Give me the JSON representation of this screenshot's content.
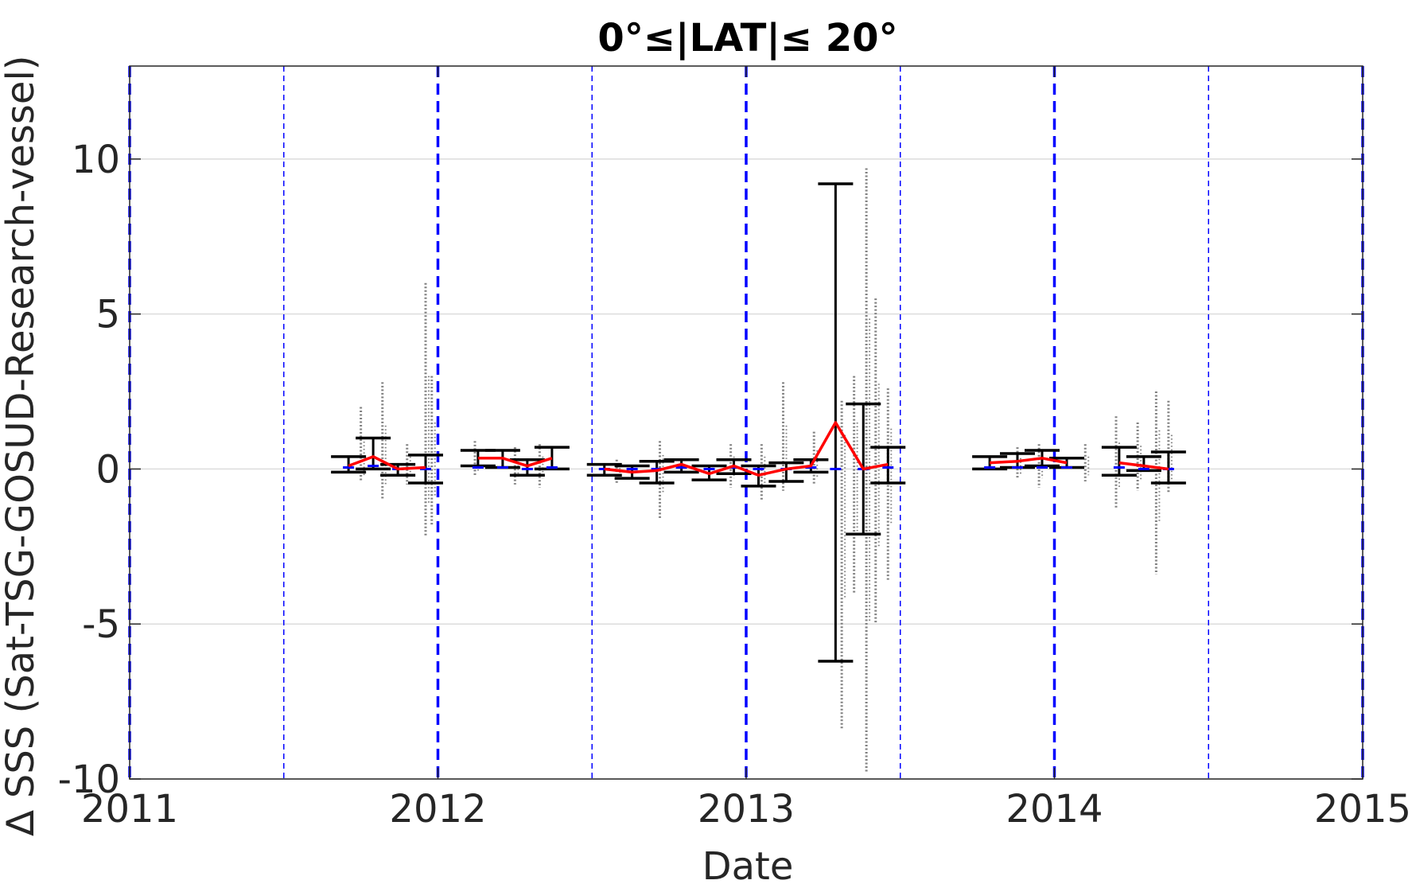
{
  "chart_data": {
    "type": "scatter",
    "title": "0°≤|LAT|≤ 20°",
    "xlabel": "Date",
    "ylabel": "∆ SSS (Sat-TSG-GOSUD-Research-vessel)",
    "xlim": [
      2011,
      2015
    ],
    "ylim": [
      -10,
      13
    ],
    "x_ticks": [
      2011,
      2012,
      2013,
      2014,
      2015
    ],
    "x_tick_labels": [
      "2011",
      "2012",
      "2013",
      "2014",
      "2015"
    ],
    "y_ticks": [
      -10,
      -5,
      0,
      5,
      10
    ],
    "y_tick_labels": [
      "-10",
      "-5",
      "0",
      "5",
      "10"
    ],
    "grid": "horizontal",
    "colors": {
      "scatter": "#808080",
      "mean_line": "#ff0000",
      "errorbar": "#000000",
      "year_markers": "#0000ff",
      "median_marks": "#0000ff",
      "grid": "#dcdcdc",
      "axes": "#262626"
    },
    "year_markers": [
      2011,
      2012,
      2013,
      2014,
      2015
    ],
    "half_year_markers": [
      2011.5,
      2012.5,
      2013.5,
      2014.5
    ],
    "scatter_spread": [
      {
        "x": 2011.75,
        "ymin": -0.4,
        "ymax": 2.0
      },
      {
        "x": 2011.82,
        "ymin": -1.0,
        "ymax": 2.8
      },
      {
        "x": 2011.9,
        "ymin": -0.5,
        "ymax": 0.8
      },
      {
        "x": 2011.96,
        "ymin": -2.2,
        "ymax": 6.0
      },
      {
        "x": 2011.98,
        "ymin": -1.8,
        "ymax": 3.0
      },
      {
        "x": 2012.12,
        "ymin": -0.2,
        "ymax": 0.9
      },
      {
        "x": 2012.25,
        "ymin": -0.5,
        "ymax": 0.7
      },
      {
        "x": 2012.33,
        "ymin": -0.6,
        "ymax": 0.8
      },
      {
        "x": 2012.58,
        "ymin": -0.5,
        "ymax": 0.3
      },
      {
        "x": 2012.72,
        "ymin": -1.6,
        "ymax": 0.9
      },
      {
        "x": 2012.95,
        "ymin": -0.6,
        "ymax": 0.8
      },
      {
        "x": 2013.05,
        "ymin": -1.0,
        "ymax": 0.8
      },
      {
        "x": 2013.12,
        "ymin": -0.7,
        "ymax": 2.8
      },
      {
        "x": 2013.22,
        "ymin": -0.5,
        "ymax": 1.2
      },
      {
        "x": 2013.31,
        "ymin": -8.4,
        "ymax": 2.2
      },
      {
        "x": 2013.35,
        "ymin": -4.0,
        "ymax": 3.0
      },
      {
        "x": 2013.39,
        "ymin": -9.8,
        "ymax": 9.7
      },
      {
        "x": 2013.42,
        "ymin": -5.0,
        "ymax": 5.5
      },
      {
        "x": 2013.46,
        "ymin": -3.6,
        "ymax": 2.6
      },
      {
        "x": 2013.88,
        "ymin": -0.3,
        "ymax": 0.7
      },
      {
        "x": 2013.95,
        "ymin": -0.6,
        "ymax": 0.8
      },
      {
        "x": 2014.1,
        "ymin": -0.4,
        "ymax": 0.8
      },
      {
        "x": 2014.2,
        "ymin": -1.3,
        "ymax": 1.7
      },
      {
        "x": 2014.27,
        "ymin": -0.7,
        "ymax": 1.5
      },
      {
        "x": 2014.33,
        "ymin": -3.4,
        "ymax": 2.5
      },
      {
        "x": 2014.37,
        "ymin": -0.8,
        "ymax": 2.2
      }
    ],
    "series": [
      {
        "type": "line",
        "segments": [
          {
            "x": [
              2011.71,
              2011.79,
              2011.87,
              2011.96
            ],
            "y": [
              0.1,
              0.4,
              0.0,
              0.05
            ]
          },
          {
            "x": [
              2012.13,
              2012.21,
              2012.29,
              2012.37
            ],
            "y": [
              0.35,
              0.35,
              0.1,
              0.35
            ]
          },
          {
            "x": [
              2012.54,
              2012.63,
              2012.71,
              2012.79,
              2012.88,
              2012.96,
              2013.04,
              2013.13,
              2013.21,
              2013.29,
              2013.38,
              2013.46
            ],
            "y": [
              0.0,
              -0.1,
              -0.05,
              0.15,
              -0.15,
              0.1,
              -0.2,
              0.0,
              0.1,
              1.5,
              0.0,
              0.15
            ]
          },
          {
            "x": [
              2013.79,
              2013.88,
              2013.96,
              2014.04
            ],
            "y": [
              0.2,
              0.25,
              0.35,
              0.2
            ]
          },
          {
            "x": [
              2014.21,
              2014.29,
              2014.37
            ],
            "y": [
              0.2,
              0.1,
              0.0
            ]
          }
        ]
      }
    ],
    "errorbars": [
      {
        "x": 2011.71,
        "low": -0.1,
        "high": 0.4
      },
      {
        "x": 2011.79,
        "low": 0.0,
        "high": 1.0
      },
      {
        "x": 2011.87,
        "low": -0.2,
        "high": 0.15
      },
      {
        "x": 2011.96,
        "low": -0.45,
        "high": 0.45
      },
      {
        "x": 2012.13,
        "low": 0.1,
        "high": 0.6
      },
      {
        "x": 2012.21,
        "low": 0.05,
        "high": 0.6
      },
      {
        "x": 2012.29,
        "low": -0.2,
        "high": 0.3
      },
      {
        "x": 2012.37,
        "low": 0.0,
        "high": 0.7
      },
      {
        "x": 2012.54,
        "low": -0.2,
        "high": 0.15
      },
      {
        "x": 2012.63,
        "low": -0.3,
        "high": 0.1
      },
      {
        "x": 2012.71,
        "low": -0.45,
        "high": 0.25
      },
      {
        "x": 2012.79,
        "low": -0.1,
        "high": 0.3
      },
      {
        "x": 2012.88,
        "low": -0.35,
        "high": 0.1
      },
      {
        "x": 2012.96,
        "low": -0.15,
        "high": 0.3
      },
      {
        "x": 2013.04,
        "low": -0.55,
        "high": 0.1
      },
      {
        "x": 2013.13,
        "low": -0.4,
        "high": 0.2
      },
      {
        "x": 2013.21,
        "low": -0.1,
        "high": 0.3
      },
      {
        "x": 2013.29,
        "low": -6.2,
        "high": 9.2
      },
      {
        "x": 2013.38,
        "low": -2.1,
        "high": 2.1
      },
      {
        "x": 2013.46,
        "low": -0.45,
        "high": 0.7
      },
      {
        "x": 2013.79,
        "low": 0.0,
        "high": 0.4
      },
      {
        "x": 2013.88,
        "low": 0.05,
        "high": 0.5
      },
      {
        "x": 2013.96,
        "low": 0.1,
        "high": 0.6
      },
      {
        "x": 2014.04,
        "low": 0.05,
        "high": 0.35
      },
      {
        "x": 2014.21,
        "low": -0.2,
        "high": 0.7
      },
      {
        "x": 2014.29,
        "low": -0.05,
        "high": 0.4
      },
      {
        "x": 2014.37,
        "low": -0.45,
        "high": 0.55
      }
    ],
    "medians": [
      {
        "x": 2011.71,
        "y": 0.05
      },
      {
        "x": 2011.79,
        "y": 0.1
      },
      {
        "x": 2011.87,
        "y": 0.0
      },
      {
        "x": 2011.96,
        "y": 0.0
      },
      {
        "x": 2012.13,
        "y": 0.05
      },
      {
        "x": 2012.21,
        "y": 0.05
      },
      {
        "x": 2012.29,
        "y": 0.0
      },
      {
        "x": 2012.37,
        "y": 0.05
      },
      {
        "x": 2012.54,
        "y": 0.0
      },
      {
        "x": 2012.63,
        "y": 0.0
      },
      {
        "x": 2012.71,
        "y": 0.0
      },
      {
        "x": 2012.79,
        "y": 0.05
      },
      {
        "x": 2012.88,
        "y": 0.0
      },
      {
        "x": 2012.96,
        "y": 0.05
      },
      {
        "x": 2013.04,
        "y": 0.0
      },
      {
        "x": 2013.13,
        "y": 0.0
      },
      {
        "x": 2013.21,
        "y": 0.05
      },
      {
        "x": 2013.29,
        "y": 0.0
      },
      {
        "x": 2013.38,
        "y": 0.0
      },
      {
        "x": 2013.46,
        "y": 0.05
      },
      {
        "x": 2013.79,
        "y": 0.05
      },
      {
        "x": 2013.88,
        "y": 0.05
      },
      {
        "x": 2013.96,
        "y": 0.05
      },
      {
        "x": 2014.04,
        "y": 0.05
      },
      {
        "x": 2014.21,
        "y": 0.05
      },
      {
        "x": 2014.29,
        "y": 0.0
      },
      {
        "x": 2014.37,
        "y": 0.0
      }
    ]
  }
}
